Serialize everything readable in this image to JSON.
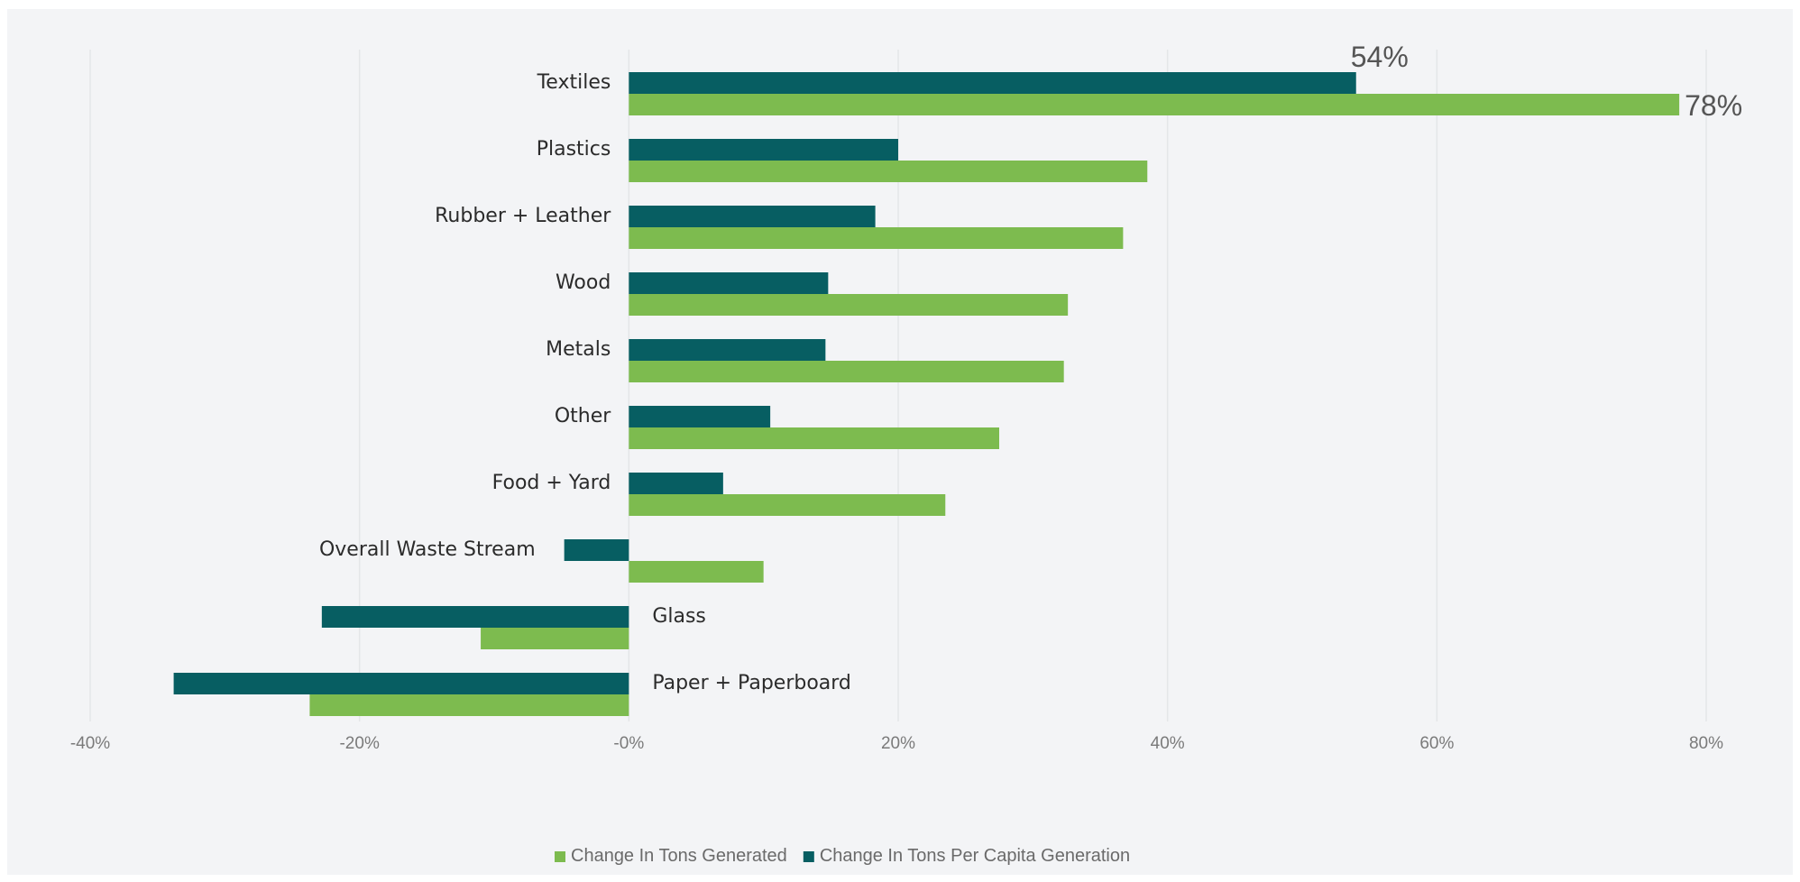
{
  "chart_data": {
    "type": "bar",
    "orientation": "horizontal",
    "title": "",
    "xlabel": "",
    "ylabel": "",
    "xlim": [
      -40,
      80
    ],
    "x_ticks": [
      -40,
      -20,
      0,
      20,
      40,
      60,
      80
    ],
    "x_tick_labels": [
      "-40%",
      "-20%",
      "-0%",
      "20%",
      "40%",
      "60%",
      "80%"
    ],
    "grid": "vertical",
    "legend_position": "bottom",
    "categories": [
      "Textiles",
      "Plastics",
      "Rubber + Leather",
      "Wood",
      "Metals",
      "Other",
      "Food + Yard",
      "Overall Waste Stream",
      "Glass",
      "Paper + Paperboard"
    ],
    "series": [
      {
        "name": "Change In Tons Generated",
        "color": "#7dbb4f",
        "values": [
          78,
          38.5,
          36.7,
          32.6,
          32.3,
          27.5,
          23.5,
          10,
          -11,
          -23.7
        ]
      },
      {
        "name": "Change In Tons Per Capita Generation",
        "color": "#075e62",
        "values": [
          54,
          20,
          18.3,
          14.8,
          14.6,
          10.5,
          7,
          -4.8,
          -22.8,
          -33.8
        ]
      }
    ],
    "data_labels": [
      {
        "category": "Textiles",
        "series": "Change In Tons Per Capita Generation",
        "text": "54%"
      },
      {
        "category": "Textiles",
        "series": "Change In Tons Generated",
        "text": "78%"
      }
    ]
  }
}
